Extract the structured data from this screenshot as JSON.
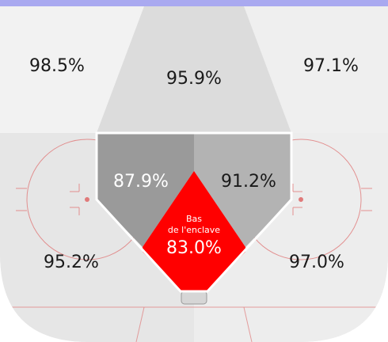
{
  "chart_data": {
    "type": "heatmap",
    "title": "",
    "zones": [
      {
        "id": "top-left",
        "label": "98.5%",
        "value": 98.5
      },
      {
        "id": "top-center",
        "label": "95.9%",
        "value": 95.9
      },
      {
        "id": "top-right",
        "label": "97.1%",
        "value": 97.1
      },
      {
        "id": "slot-left",
        "label": "87.9%",
        "value": 87.9
      },
      {
        "id": "slot-right",
        "label": "91.2%",
        "value": 91.2
      },
      {
        "id": "low-slot",
        "title_line1": "Bas",
        "title_line2": "de l'enclave",
        "label": "83.0%",
        "value": 83.0
      },
      {
        "id": "bottom-left",
        "label": "95.2%",
        "value": 95.2
      },
      {
        "id": "bottom-right",
        "label": "97.0%",
        "value": 97.0
      }
    ],
    "colors": {
      "highlight": "#ff0000",
      "slot_dark": "#9a9a9a",
      "slot_light": "#b3b3b3",
      "ice": "#ececec",
      "ice_light": "#f4f4f4",
      "rink_lines": "#e07a7a",
      "blue_line": "#a9a9f0"
    }
  }
}
